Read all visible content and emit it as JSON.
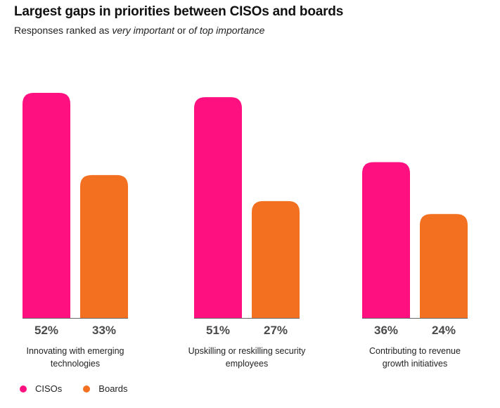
{
  "title": "Largest gaps in priorities between CISOs and boards",
  "subtitle": {
    "prefix": "Responses ranked as ",
    "em1": "very important",
    "middle": " or ",
    "em2": "of top importance"
  },
  "colors": {
    "cisos": "#ff1080",
    "boards": "#f37021",
    "baseline": "#666666",
    "value_text": "#4a4a4a",
    "label_text": "#222222"
  },
  "chart_data": {
    "type": "bar",
    "title": "Largest gaps in priorities between CISOs and boards",
    "subtitle": "Responses ranked as very important or of top importance",
    "categories": [
      [
        "Innovating with emerging",
        "technologies"
      ],
      [
        "Upskilling or reskilling security",
        "employees"
      ],
      [
        "Contributing to revenue",
        "growth initiatives"
      ]
    ],
    "series": [
      {
        "name": "CISOs",
        "values": [
          52,
          51,
          36
        ],
        "labels": [
          "52%",
          "51%",
          "36%"
        ]
      },
      {
        "name": "Boards",
        "values": [
          33,
          27,
          24
        ],
        "labels": [
          "33%",
          "27%",
          "24%"
        ]
      }
    ],
    "ylim": [
      0,
      52
    ],
    "legend": "bottom-left",
    "grid": false
  }
}
